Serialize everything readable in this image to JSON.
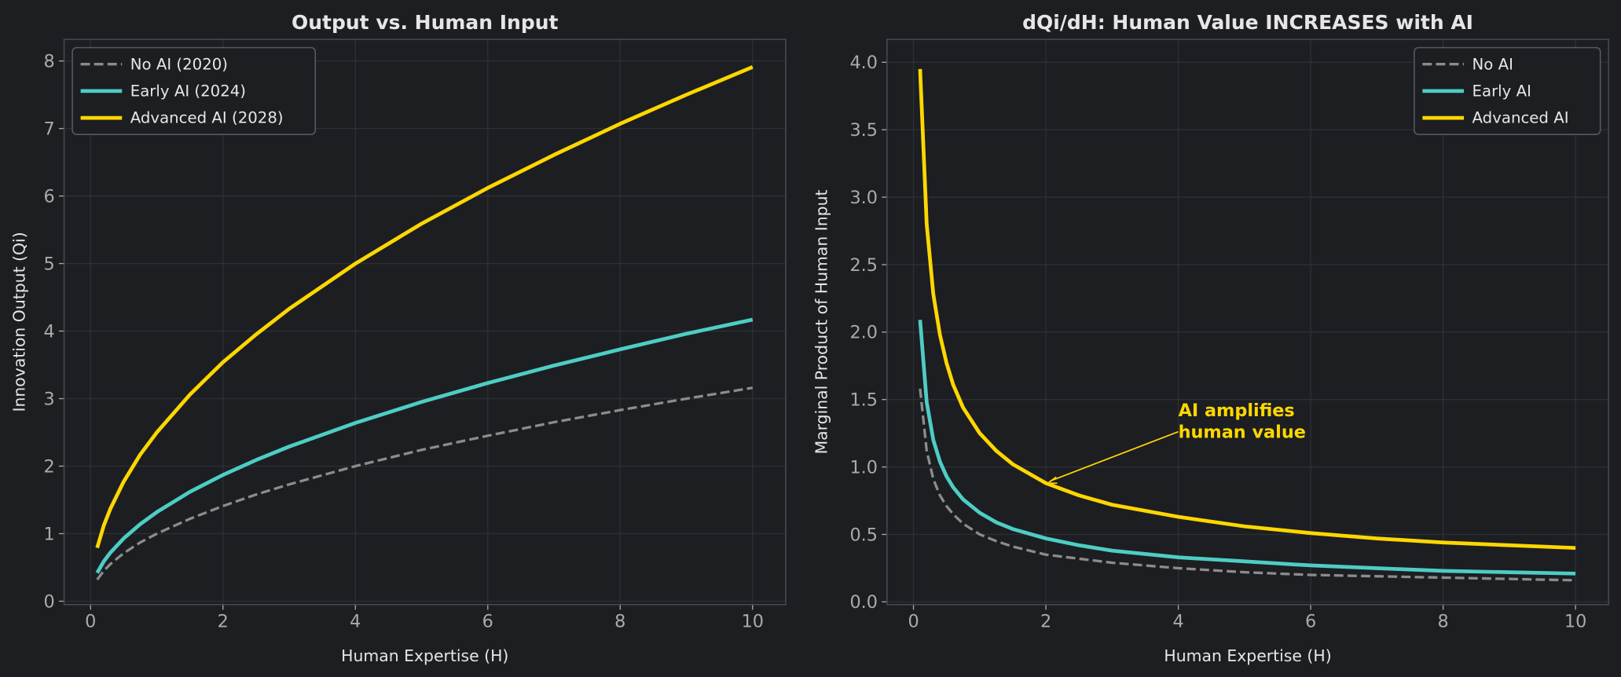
{
  "colors": {
    "background": "#1c1e22",
    "no_ai": "#8c8c8c",
    "early_ai": "#4ecdc4",
    "advanced_ai": "#ffd700",
    "text": "#e6e6e6",
    "tick": "#aaaaaa"
  },
  "chart_data": [
    {
      "type": "line",
      "title": "Output vs. Human Input",
      "xlabel": "Human Expertise (H)",
      "ylabel": "Innovation Output (Qi)",
      "xlim": [
        -0.4,
        10.5
      ],
      "ylim": [
        -0.05,
        8.32
      ],
      "xticks": [
        "0",
        "2",
        "4",
        "6",
        "8",
        "10"
      ],
      "yticks": [
        "0",
        "1",
        "2",
        "3",
        "4",
        "5",
        "6",
        "7",
        "8"
      ],
      "grid": true,
      "legend": "top-left",
      "x": [
        0.1,
        0.2,
        0.3,
        0.5,
        0.75,
        1,
        1.5,
        2,
        2.5,
        3,
        4,
        5,
        6,
        7,
        8,
        9,
        10
      ],
      "series": [
        {
          "name": "No AI (2020)",
          "style": "dashed",
          "values": [
            0.32,
            0.45,
            0.55,
            0.71,
            0.87,
            1.0,
            1.22,
            1.41,
            1.58,
            1.73,
            2.0,
            2.24,
            2.45,
            2.65,
            2.83,
            3.0,
            3.16
          ]
        },
        {
          "name": "Early AI (2024)",
          "style": "solid",
          "values": [
            0.42,
            0.59,
            0.72,
            0.93,
            1.14,
            1.32,
            1.62,
            1.87,
            2.09,
            2.29,
            2.64,
            2.95,
            3.23,
            3.49,
            3.73,
            3.96,
            4.17
          ]
        },
        {
          "name": "Advanced AI (2028)",
          "style": "solid",
          "values": [
            0.79,
            1.12,
            1.37,
            1.77,
            2.17,
            2.5,
            3.06,
            3.54,
            3.95,
            4.33,
            5.0,
            5.59,
            6.12,
            6.61,
            7.07,
            7.5,
            7.91
          ]
        }
      ]
    },
    {
      "type": "line",
      "title": "dQi/dH: Human Value INCREASES with AI",
      "xlabel": "Human Expertise (H)",
      "ylabel": "Marginal Product of Human Input",
      "xlim": [
        -0.4,
        10.5
      ],
      "ylim": [
        -0.02,
        4.17
      ],
      "xticks": [
        "0",
        "2",
        "4",
        "6",
        "8",
        "10"
      ],
      "yticks": [
        "0.0",
        "0.5",
        "1.0",
        "1.5",
        "2.0",
        "2.5",
        "3.0",
        "3.5",
        "4.0"
      ],
      "grid": true,
      "legend": "top-right",
      "x": [
        0.1,
        0.2,
        0.3,
        0.4,
        0.5,
        0.6,
        0.75,
        1,
        1.25,
        1.5,
        2,
        2.5,
        3,
        4,
        5,
        6,
        7,
        8,
        9,
        10
      ],
      "series": [
        {
          "name": "No AI",
          "style": "dashed",
          "values": [
            1.58,
            1.12,
            0.91,
            0.79,
            0.71,
            0.65,
            0.58,
            0.5,
            0.45,
            0.41,
            0.35,
            0.32,
            0.29,
            0.25,
            0.22,
            0.2,
            0.19,
            0.18,
            0.17,
            0.16
          ]
        },
        {
          "name": "Early AI",
          "style": "solid",
          "values": [
            2.09,
            1.48,
            1.2,
            1.04,
            0.93,
            0.85,
            0.76,
            0.66,
            0.59,
            0.54,
            0.47,
            0.42,
            0.38,
            0.33,
            0.3,
            0.27,
            0.25,
            0.23,
            0.22,
            0.21
          ]
        },
        {
          "name": "Advanced AI",
          "style": "solid",
          "values": [
            3.95,
            2.8,
            2.28,
            1.98,
            1.77,
            1.61,
            1.44,
            1.25,
            1.12,
            1.02,
            0.88,
            0.79,
            0.72,
            0.63,
            0.56,
            0.51,
            0.47,
            0.44,
            0.42,
            0.4
          ]
        }
      ],
      "annotation": {
        "text_lines": [
          "AI amplifies",
          "human value"
        ],
        "point": [
          2,
          0.88
        ],
        "text_at": [
          4,
          1.3
        ]
      }
    }
  ]
}
